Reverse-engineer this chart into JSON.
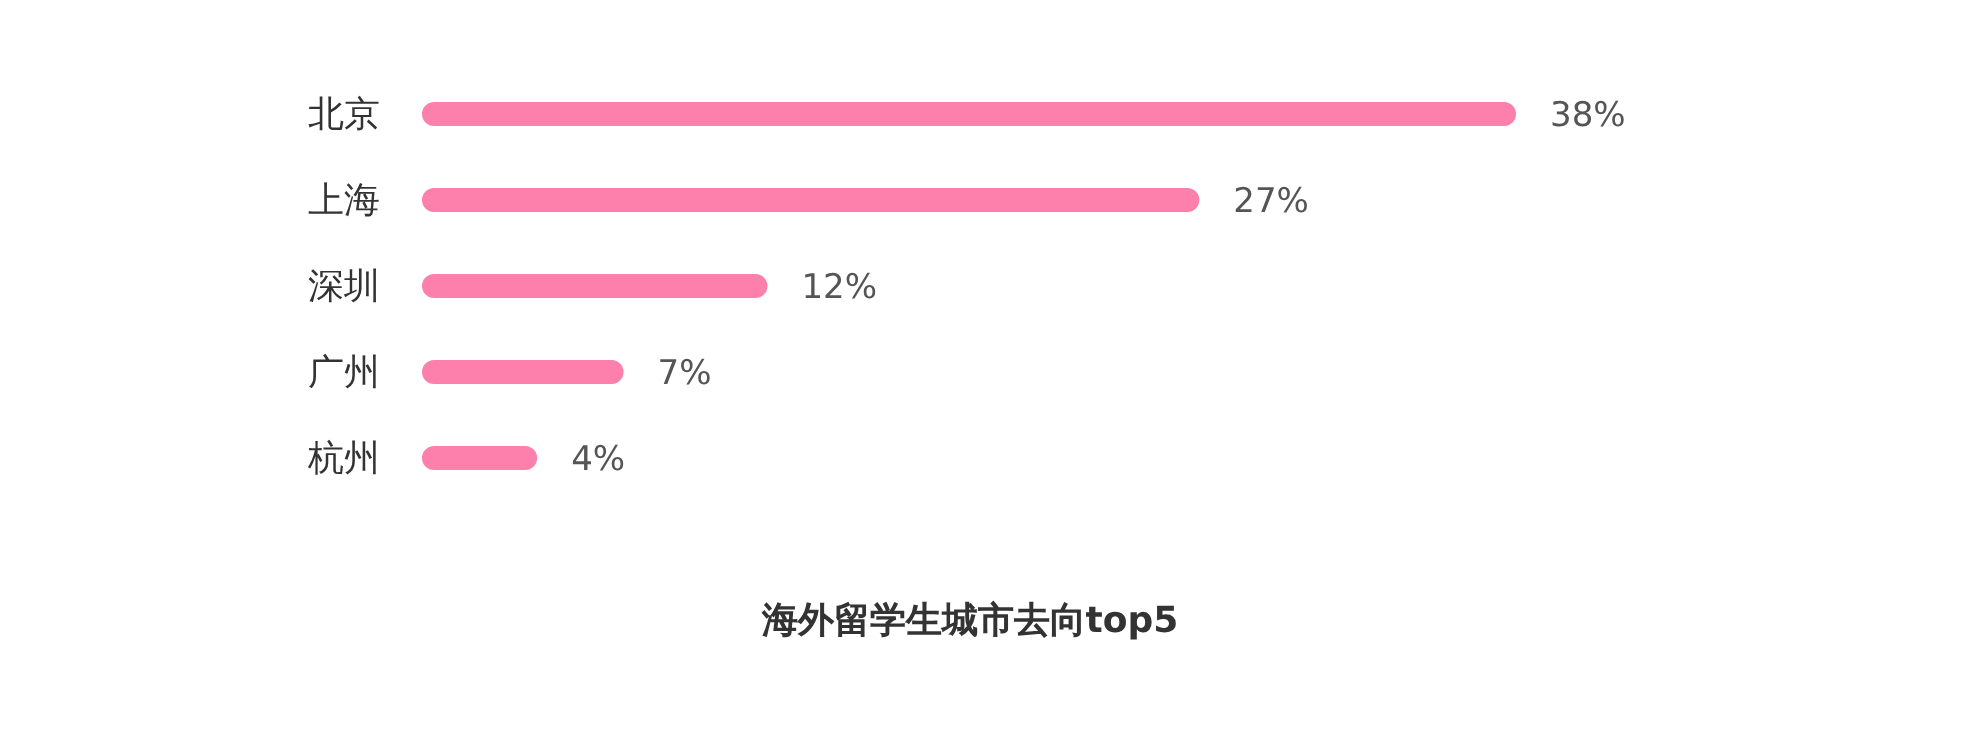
{
  "chart_data": {
    "type": "bar",
    "orientation": "horizontal",
    "title": "海外留学生城市去向top5",
    "categories": [
      "北京",
      "上海",
      "深圳",
      "广州",
      "杭州"
    ],
    "values": [
      38,
      27,
      12,
      7,
      4
    ],
    "value_labels": [
      "38%",
      "27%",
      "12%",
      "7%",
      "4%"
    ],
    "color": "#fd7fab"
  }
}
